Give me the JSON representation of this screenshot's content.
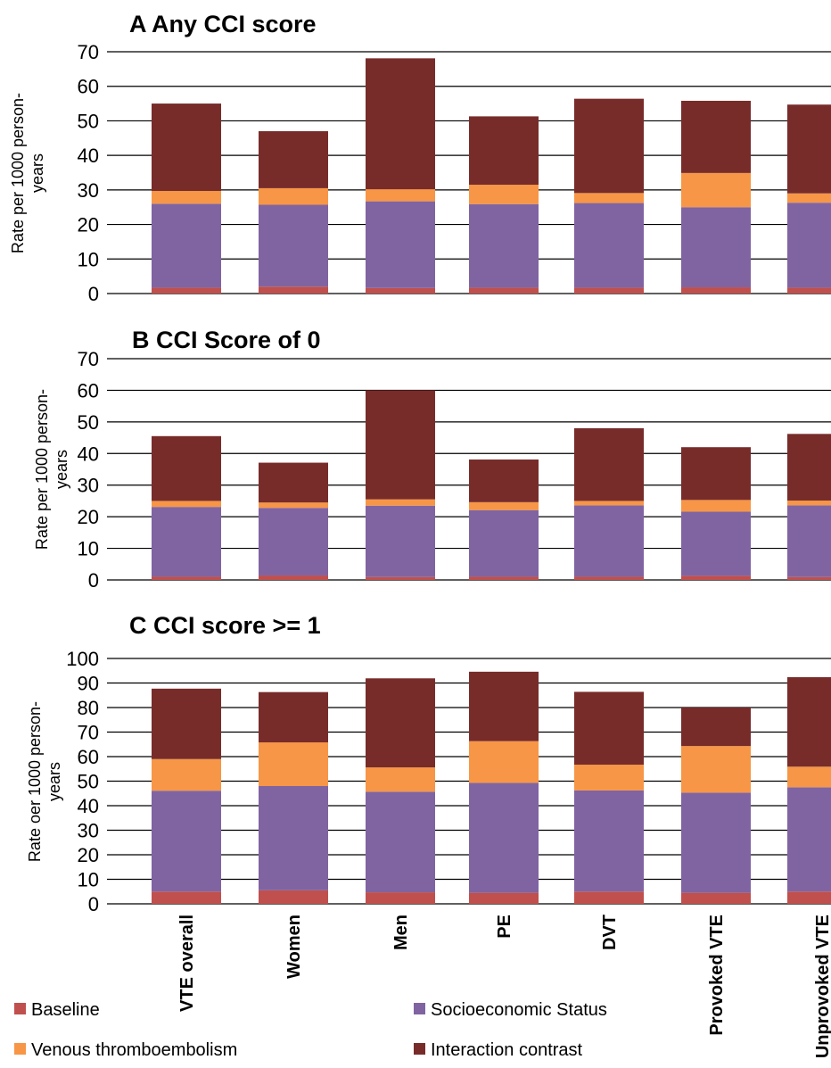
{
  "colors": {
    "Baseline": "#C0504D",
    "Socioeconomic Status": "#8064A2",
    "Venous thromboembolism": "#F79646",
    "Interaction contrast": "#772C2A"
  },
  "legend": [
    {
      "name": "Baseline",
      "position": "bottom-left"
    },
    {
      "name": "Socioeconomic Status",
      "position": "bottom-right"
    },
    {
      "name": "Venous thromboembolism",
      "position": "bottom-left"
    },
    {
      "name": "Interaction contrast",
      "position": "bottom-right"
    }
  ],
  "chart_data": [
    {
      "type": "bar",
      "stacked": true,
      "title": "A  Any CCI score",
      "ylabel": "Rate per 1000 person-years",
      "ylabel_lines": [
        "Rate per 1000 person-",
        "years"
      ],
      "ylim": [
        0,
        70
      ],
      "yticks": [
        0,
        10,
        20,
        30,
        40,
        50,
        60,
        70
      ],
      "grid": true,
      "categories": [
        "VTE overall",
        "Women",
        "Men",
        "PE",
        "DVT",
        "Provoked VTE",
        "Unprovoked VTE"
      ],
      "series": [
        {
          "name": "Baseline",
          "values": [
            1.7,
            2.0,
            1.6,
            1.7,
            1.7,
            1.8,
            1.7
          ]
        },
        {
          "name": "Socioeconomic Status",
          "values": [
            24.3,
            23.7,
            25.1,
            24.2,
            24.5,
            23.2,
            24.6
          ]
        },
        {
          "name": "Venous thromboembolism",
          "values": [
            3.7,
            4.8,
            3.5,
            5.6,
            2.9,
            9.9,
            2.7
          ]
        },
        {
          "name": "Interaction contrast",
          "values": [
            25.3,
            16.5,
            37.9,
            19.8,
            27.3,
            20.9,
            25.7
          ]
        }
      ]
    },
    {
      "type": "bar",
      "stacked": true,
      "title": "B  CCI Score of 0",
      "ylabel": "Rate per 1000 person-years",
      "ylabel_lines": [
        "Rate per 1000 person-",
        "years"
      ],
      "ylim": [
        0,
        70
      ],
      "yticks": [
        0,
        10,
        20,
        30,
        40,
        50,
        60,
        70
      ],
      "grid": true,
      "categories": [
        "VTE overall",
        "Women",
        "Men",
        "PE",
        "DVT",
        "Provoked VTE",
        "Unprovoked VTE"
      ],
      "series": [
        {
          "name": "Baseline",
          "values": [
            1.0,
            1.4,
            0.9,
            1.0,
            1.0,
            1.3,
            0.9
          ]
        },
        {
          "name": "Socioeconomic Status",
          "values": [
            22.1,
            21.4,
            22.6,
            21.1,
            22.6,
            20.3,
            22.7
          ]
        },
        {
          "name": "Venous thromboembolism",
          "values": [
            1.9,
            1.7,
            2.0,
            2.5,
            1.4,
            3.7,
            1.5
          ]
        },
        {
          "name": "Interaction contrast",
          "values": [
            20.5,
            12.6,
            34.5,
            13.5,
            23.0,
            16.7,
            21.1
          ]
        }
      ]
    },
    {
      "type": "bar",
      "stacked": true,
      "title": "C  CCI score >= 1",
      "ylabel": "Rate oer 1000 person-years",
      "ylabel_lines": [
        "Rate oer 1000 person-",
        "years"
      ],
      "ylim": [
        0,
        100
      ],
      "yticks": [
        0,
        10,
        20,
        30,
        40,
        50,
        60,
        70,
        80,
        90,
        100
      ],
      "grid": true,
      "categories": [
        "VTE overall",
        "Women",
        "Men",
        "PE",
        "DVT",
        "Provoked VTE",
        "Unprovoked VTE"
      ],
      "series": [
        {
          "name": "Baseline",
          "values": [
            5.0,
            5.5,
            4.7,
            4.5,
            5.0,
            4.5,
            5.0
          ]
        },
        {
          "name": "Socioeconomic Status",
          "values": [
            41.1,
            42.5,
            41.0,
            44.8,
            41.2,
            40.8,
            42.5
          ]
        },
        {
          "name": "Venous thromboembolism",
          "values": [
            12.9,
            17.8,
            9.9,
            17.0,
            10.5,
            19.0,
            8.4
          ]
        },
        {
          "name": "Interaction contrast",
          "values": [
            28.7,
            20.5,
            36.3,
            28.3,
            29.7,
            15.7,
            36.5
          ]
        }
      ]
    }
  ]
}
